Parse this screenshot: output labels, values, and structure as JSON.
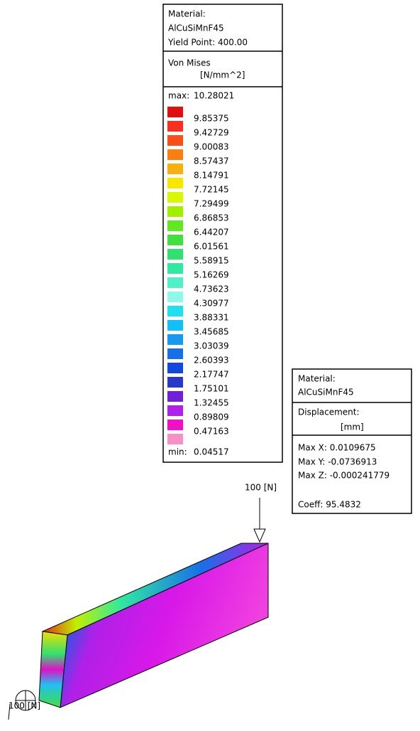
{
  "stress_panel": {
    "material_label": "Material:",
    "material": "AlCuSiMnF45",
    "yield_point": "Yield Point: 400.00",
    "result": "Von Mises",
    "unit": "[N/mm^2]",
    "max_label": "max:",
    "max": "10.28021",
    "min_label": "min:",
    "min": "0.04517",
    "levels": [
      "9.85375",
      "9.42729",
      "9.00083",
      "8.57437",
      "8.14791",
      "7.72145",
      "7.29499",
      "6.86853",
      "6.44207",
      "6.01561",
      "5.58915",
      "5.16269",
      "4.73623",
      "4.30977",
      "3.88331",
      "3.45685",
      "3.03039",
      "2.60393",
      "2.17747",
      "1.75101",
      "1.32455",
      "0.89809",
      "0.47163"
    ],
    "colors": [
      "#e01010",
      "#f83020",
      "#f85018",
      "#f88010",
      "#f8b010",
      "#f8e800",
      "#d8f800",
      "#a0f000",
      "#60e820",
      "#40e040",
      "#30e070",
      "#30e8a0",
      "#50f0c8",
      "#90f8e8",
      "#20e0f0",
      "#10c0f8",
      "#1898f0",
      "#1870e8",
      "#1048e0",
      "#2838c8",
      "#7020d8",
      "#b020e8",
      "#f010c8",
      "#f890c8"
    ]
  },
  "displacement_panel": {
    "material_label": "Material:",
    "material": "AlCuSiMnF45",
    "result": "Displacement:",
    "unit": "[mm]",
    "max_x": "Max X: 0.0109675",
    "max_y": "Max Y: -0.0736913",
    "max_z": "Max Z: -0.000241779",
    "coeff": "Coeff:  95.4832"
  },
  "loads": {
    "top": "100 [N]",
    "bottom": "100 [N]"
  }
}
